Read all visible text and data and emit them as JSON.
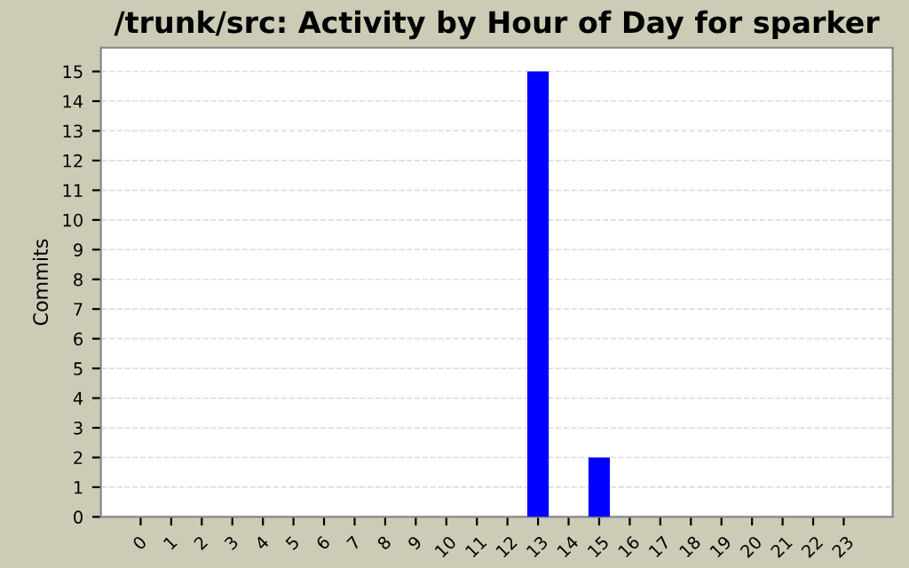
{
  "chart_data": {
    "type": "bar",
    "title": "/trunk/src: Activity by Hour of Day for sparker",
    "ylabel": "Commits",
    "categories": [
      "0",
      "1",
      "2",
      "3",
      "4",
      "5",
      "6",
      "7",
      "8",
      "9",
      "10",
      "11",
      "12",
      "13",
      "14",
      "15",
      "16",
      "17",
      "18",
      "19",
      "20",
      "21",
      "22",
      "23"
    ],
    "values": [
      0,
      0,
      0,
      0,
      0,
      0,
      0,
      0,
      0,
      0,
      0,
      0,
      0,
      15,
      0,
      2,
      0,
      0,
      0,
      0,
      0,
      0,
      0,
      0
    ],
    "color": "#0000ff",
    "ylim": [
      0,
      15.8
    ],
    "yticks": [
      0,
      1,
      2,
      3,
      4,
      5,
      6,
      7,
      8,
      9,
      10,
      11,
      12,
      13,
      14,
      15
    ],
    "grid": "y",
    "legend": false
  }
}
